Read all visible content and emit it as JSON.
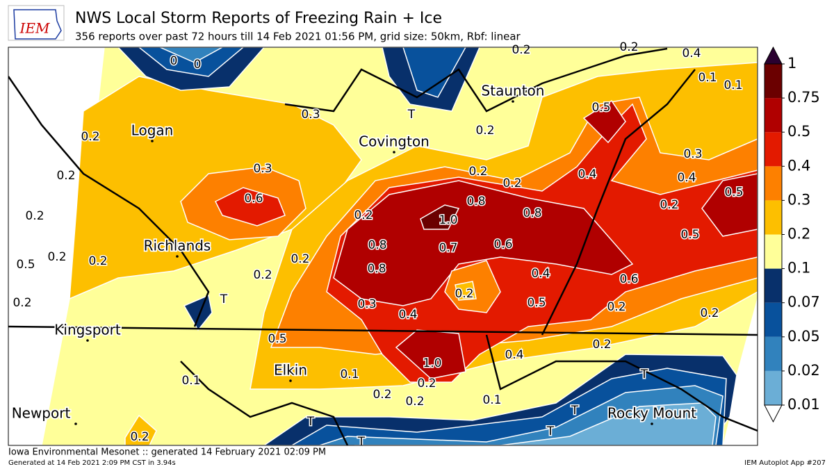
{
  "header": {
    "logo": "IEM",
    "title": "NWS Local Storm Reports of Freezing Rain + Ice",
    "subtitle": "356 reports over past 72 hours till 14 Feb 2021 01:56 PM, grid size: 50km, Rbf: linear"
  },
  "legend": {
    "levels": [
      0.01,
      0.02,
      0.05,
      0.07,
      0.1,
      0.2,
      0.3,
      0.4,
      0.5,
      0.75,
      1
    ],
    "colors": [
      "#6baed6",
      "#3182bd",
      "#08519c",
      "#08306b",
      "#ffff99",
      "#fdbf00",
      "#fd8000",
      "#e31a00",
      "#b00000",
      "#6b0000"
    ],
    "over_color": "#2a0030",
    "under_color": "#ffffff"
  },
  "cities": [
    "Staunton",
    "Logan",
    "Covington",
    "Richlands",
    "Kingsport",
    "Elkin",
    "Newport",
    "Rocky Mount"
  ],
  "contour_labels": [
    "0",
    "0",
    "0.2",
    "0.2",
    "0.4",
    "0.1",
    "0.1",
    "0.3",
    "T",
    "0.5",
    "0.2",
    "0.2",
    "0.3",
    "0.3",
    "0.2",
    "0.2",
    "0.4",
    "0.4",
    "0.5",
    "0.2",
    "0.6",
    "0.2",
    "0.8",
    "0.8",
    "0.2",
    "1.0",
    "0.2",
    "0.5",
    "0.8",
    "0.7",
    "0.6",
    "0.2",
    "0.2",
    "0.2",
    "0.5",
    "0.8",
    "0.4",
    "0.2",
    "0.6",
    "0.2",
    "T",
    "0.2",
    "0.3",
    "0.5",
    "0.2",
    "0.4",
    "0.2",
    "0.5",
    "0.2",
    "0.4",
    "1.0",
    "0.1",
    "T",
    "0.1",
    "0.2",
    "0.2",
    "0.2",
    "0.1",
    "T",
    "T",
    "T",
    "0.2",
    "T"
  ],
  "footer": {
    "credit": "Iowa Environmental Mesonet :: generated 14 February 2021 02:09 PM",
    "timing": "Generated at 14 Feb 2021 2:09 PM CST in 3.94s",
    "app": "IEM Autoplot App #207"
  }
}
